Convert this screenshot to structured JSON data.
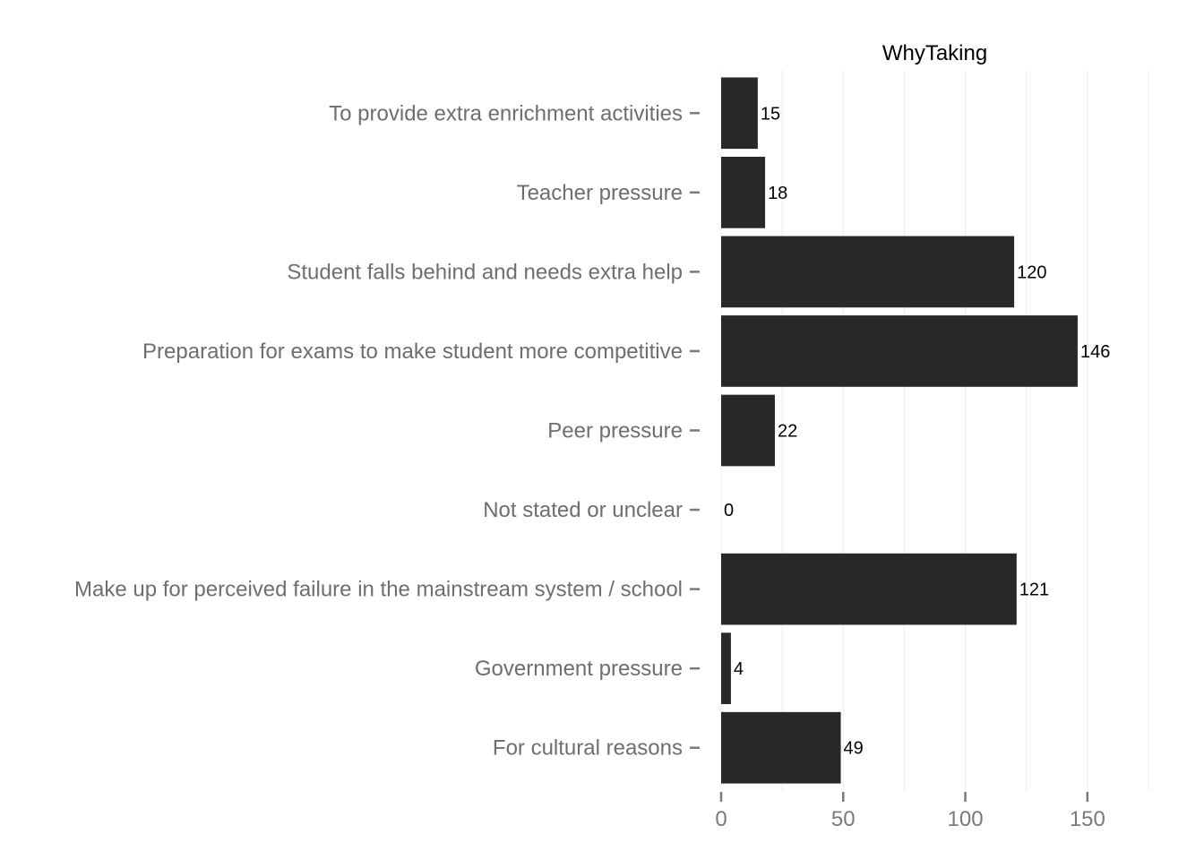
{
  "chart_data": {
    "type": "bar",
    "orientation": "horizontal",
    "title": "WhyTaking",
    "xlabel": "",
    "ylabel": "",
    "categories": [
      "To provide extra enrichment activities",
      "Teacher pressure",
      "Student falls behind and needs extra help",
      "Preparation for exams to make student more competitive",
      "Peer pressure",
      "Not stated or unclear",
      "Make up for perceived failure in the mainstream system / school",
      "Government pressure",
      "For cultural reasons"
    ],
    "values": [
      15,
      18,
      120,
      146,
      22,
      0,
      121,
      4,
      49
    ],
    "data_labels": [
      "15",
      "18",
      "120",
      "146",
      "22",
      "0",
      "121",
      "4",
      "49"
    ],
    "xlim": [
      0,
      175
    ],
    "x_ticks": [
      0,
      50,
      100,
      150
    ],
    "x_tick_labels": [
      "0",
      "50",
      "100",
      "150"
    ],
    "grid": true,
    "legend": "none",
    "colors": {
      "bar": "#282828",
      "grid": "#ececec",
      "category_text": "#6e6e6e",
      "tick_text": "#7a7a7a",
      "value_text": "#000000"
    }
  }
}
